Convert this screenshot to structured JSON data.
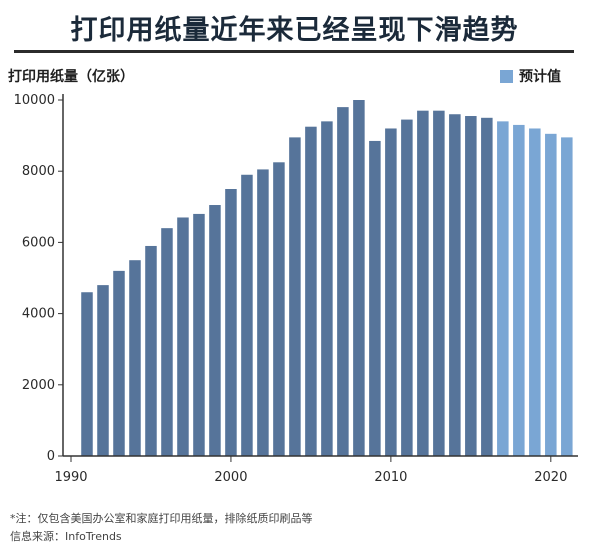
{
  "title": "打印用纸量近年来已经呈现下滑趋势",
  "footnote": "*注：仅包含美国办公室和家庭打印用纸量，排除纸质印刷品等",
  "source": "信息来源：InfoTrends",
  "chart_data": {
    "type": "bar",
    "ylabel": "打印用纸量（亿张）",
    "xlabel": "",
    "ylim": [
      0,
      10000
    ],
    "yticks": [
      0,
      2000,
      4000,
      6000,
      8000,
      10000
    ],
    "xticks": [
      1990,
      2000,
      2010,
      2020
    ],
    "grid": false,
    "legend": {
      "label": "预计值",
      "placement": "top-right",
      "color": "#7aa6d4"
    },
    "colors": {
      "actual": "#56749a",
      "forecast": "#7aa6d4",
      "axis": "#333333"
    },
    "categories": [
      1991,
      1992,
      1993,
      1994,
      1995,
      1996,
      1997,
      1998,
      1999,
      2000,
      2001,
      2002,
      2003,
      2004,
      2005,
      2006,
      2007,
      2008,
      2009,
      2010,
      2011,
      2012,
      2013,
      2014,
      2015,
      2016,
      2017,
      2018,
      2019,
      2020,
      2021
    ],
    "values": [
      4600,
      4800,
      5200,
      5500,
      5900,
      6400,
      6700,
      6800,
      7050,
      7500,
      7900,
      8050,
      8250,
      8950,
      9250,
      9400,
      9800,
      10000,
      8850,
      9200,
      9450,
      9700,
      9700,
      9600,
      9550,
      9500,
      9400,
      9300,
      9200,
      9050,
      8950
    ],
    "forecast": [
      false,
      false,
      false,
      false,
      false,
      false,
      false,
      false,
      false,
      false,
      false,
      false,
      false,
      false,
      false,
      false,
      false,
      false,
      false,
      false,
      false,
      false,
      false,
      false,
      false,
      false,
      true,
      true,
      true,
      true,
      true
    ]
  }
}
